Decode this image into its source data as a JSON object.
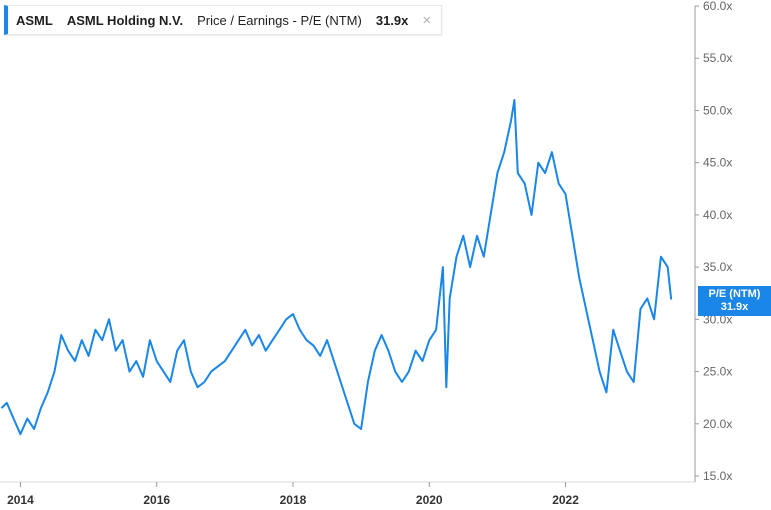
{
  "legend": {
    "ticker": "ASML",
    "company": "ASML Holding N.V.",
    "metric": "Price / Earnings - P/E (NTM)",
    "value": "31.9x",
    "close_glyph": "×"
  },
  "badge": {
    "label": "P/E (NTM)",
    "value": "31.9x"
  },
  "colors": {
    "series": "#1a86e8",
    "axis": "#999999"
  },
  "chart_data": {
    "type": "line",
    "title": "",
    "xlabel": "",
    "ylabel": "",
    "ylim": [
      15,
      60
    ],
    "xlim": [
      2013.7,
      2023.9
    ],
    "y_ticks": [
      15,
      20,
      25,
      30,
      35,
      40,
      45,
      50,
      55,
      60
    ],
    "y_tick_labels": [
      "15.0x",
      "20.0x",
      "25.0x",
      "30.0x",
      "35.0x",
      "40.0x",
      "45.0x",
      "50.0x",
      "55.0x",
      "60.0x"
    ],
    "x_ticks": [
      2014,
      2016,
      2018,
      2020,
      2022
    ],
    "x_tick_labels": [
      "2014",
      "2016",
      "2018",
      "2020",
      "2022"
    ],
    "grid": false,
    "series": [
      {
        "name": "P/E (NTM)",
        "x": [
          2013.72,
          2013.8,
          2013.9,
          2014.0,
          2014.1,
          2014.2,
          2014.3,
          2014.4,
          2014.5,
          2014.6,
          2014.7,
          2014.8,
          2014.9,
          2015.0,
          2015.1,
          2015.2,
          2015.3,
          2015.4,
          2015.5,
          2015.6,
          2015.7,
          2015.8,
          2015.9,
          2016.0,
          2016.1,
          2016.2,
          2016.3,
          2016.4,
          2016.5,
          2016.6,
          2016.7,
          2016.8,
          2016.9,
          2017.0,
          2017.1,
          2017.2,
          2017.3,
          2017.4,
          2017.5,
          2017.6,
          2017.7,
          2017.8,
          2017.9,
          2018.0,
          2018.1,
          2018.2,
          2018.3,
          2018.4,
          2018.5,
          2018.6,
          2018.7,
          2018.8,
          2018.9,
          2019.0,
          2019.1,
          2019.2,
          2019.3,
          2019.4,
          2019.5,
          2019.6,
          2019.7,
          2019.8,
          2019.9,
          2020.0,
          2020.1,
          2020.2,
          2020.25,
          2020.3,
          2020.4,
          2020.5,
          2020.6,
          2020.7,
          2020.8,
          2020.9,
          2021.0,
          2021.1,
          2021.2,
          2021.25,
          2021.3,
          2021.4,
          2021.5,
          2021.6,
          2021.7,
          2021.8,
          2021.9,
          2022.0,
          2022.1,
          2022.2,
          2022.3,
          2022.4,
          2022.5,
          2022.6,
          2022.7,
          2022.8,
          2022.9,
          2023.0,
          2023.1,
          2023.2,
          2023.3,
          2023.4,
          2023.5,
          2023.55
        ],
        "values": [
          21.5,
          22.0,
          20.5,
          19.0,
          20.5,
          19.5,
          21.5,
          23.0,
          25.0,
          28.5,
          27.0,
          26.0,
          28.0,
          26.5,
          29.0,
          28.0,
          30.0,
          27.0,
          28.0,
          25.0,
          26.0,
          24.5,
          28.0,
          26.0,
          25.0,
          24.0,
          27.0,
          28.0,
          25.0,
          23.5,
          24.0,
          25.0,
          25.5,
          26.0,
          27.0,
          28.0,
          29.0,
          27.5,
          28.5,
          27.0,
          28.0,
          29.0,
          30.0,
          30.5,
          29.0,
          28.0,
          27.5,
          26.5,
          28.0,
          26.0,
          24.0,
          22.0,
          20.0,
          19.5,
          24.0,
          27.0,
          28.5,
          27.0,
          25.0,
          24.0,
          25.0,
          27.0,
          26.0,
          28.0,
          29.0,
          35.0,
          23.5,
          32.0,
          36.0,
          38.0,
          35.0,
          38.0,
          36.0,
          40.0,
          44.0,
          46.0,
          49.0,
          51.0,
          44.0,
          43.0,
          40.0,
          45.0,
          44.0,
          46.0,
          43.0,
          42.0,
          38.0,
          34.0,
          31.0,
          28.0,
          25.0,
          23.0,
          29.0,
          27.0,
          25.0,
          24.0,
          31.0,
          32.0,
          30.0,
          36.0,
          35.0,
          31.9
        ]
      }
    ]
  }
}
